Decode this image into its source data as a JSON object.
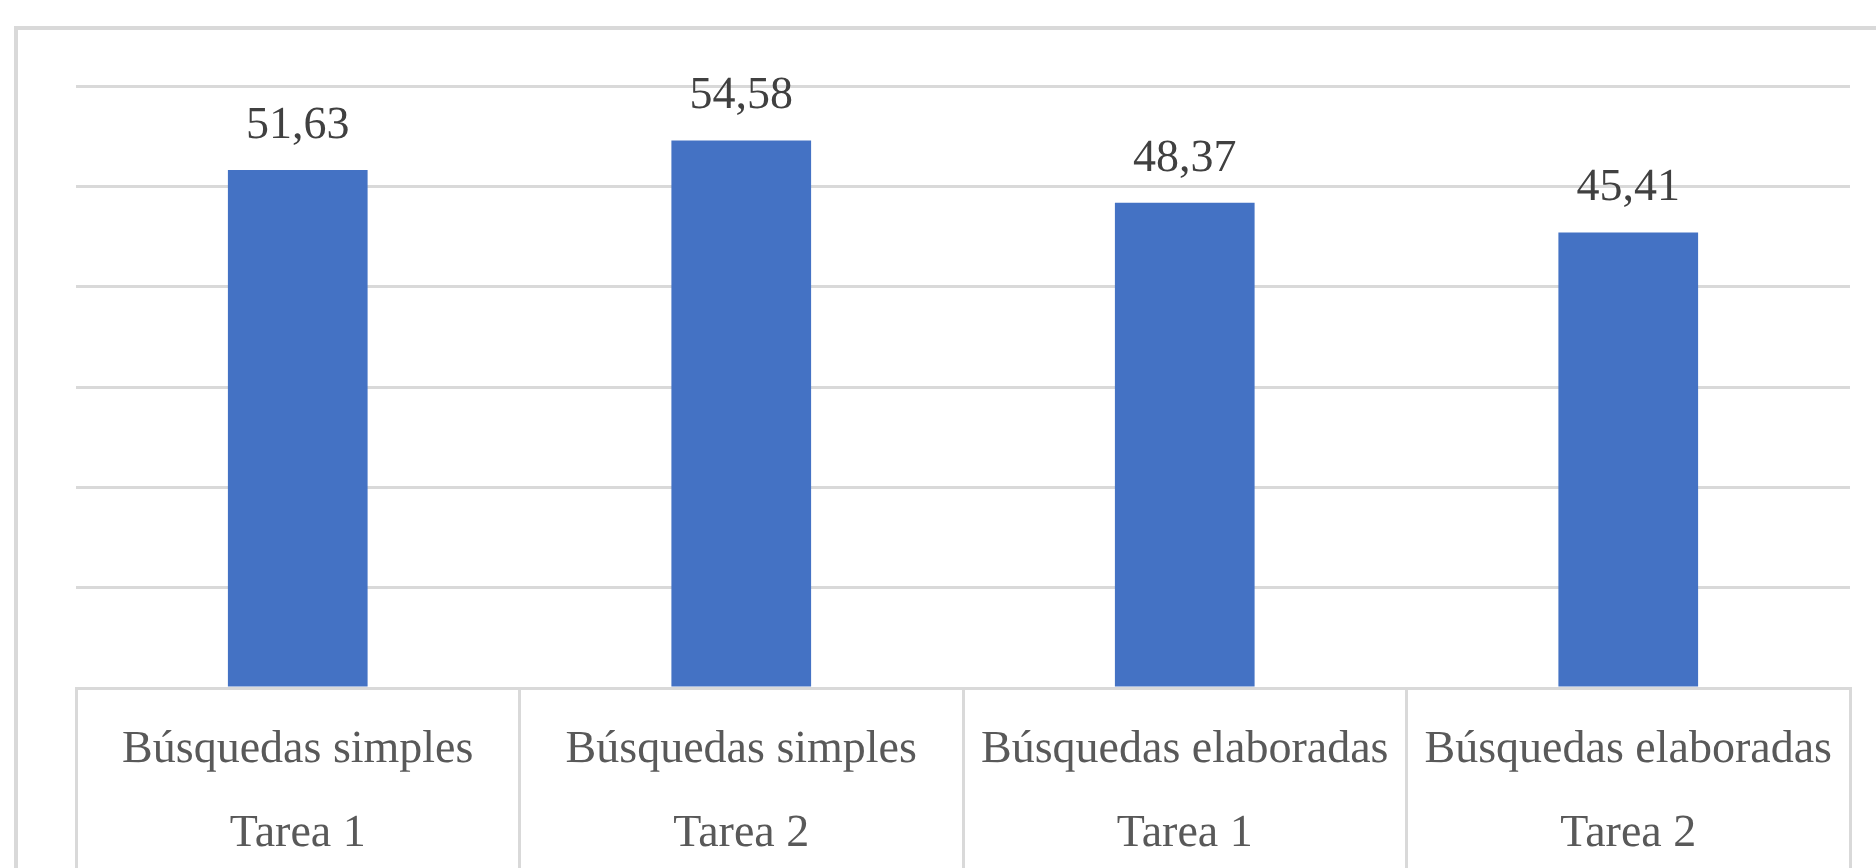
{
  "chart_data": {
    "type": "bar",
    "categories": [
      "Búsquedas simples\nTarea 1",
      "Búsquedas simples\nTarea 2",
      "Búsquedas elaboradas\nTarea 1",
      "Búsquedas elaboradas\nTarea 2"
    ],
    "values": [
      51.63,
      54.58,
      48.37,
      45.41
    ],
    "color": "#4472c4",
    "value_labels": [
      "51,63",
      "54,58",
      "48,37",
      "45,41"
    ],
    "ylim": [
      0,
      60
    ],
    "yticks": [
      {
        "value": 0,
        "label": null
      },
      {
        "value": 10,
        "label": null
      },
      {
        "value": 20,
        "label": null
      },
      {
        "value": 30,
        "label": null
      },
      {
        "value": 40,
        "label": null
      },
      {
        "value": 50,
        "label": null
      },
      {
        "value": 60,
        "label": null
      }
    ],
    "tick_labels": "x",
    "grid": "y",
    "legend": false
  }
}
